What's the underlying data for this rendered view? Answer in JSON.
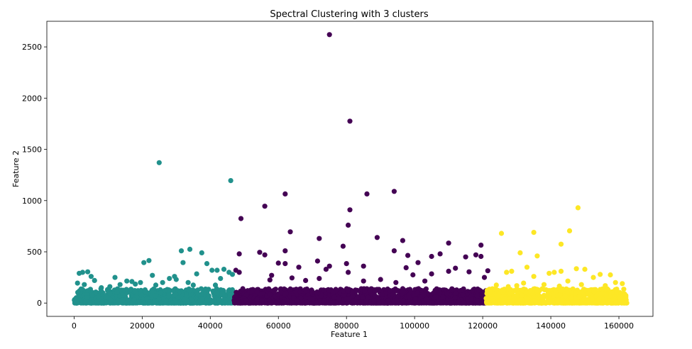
{
  "chart_data": {
    "type": "scatter",
    "title": "Spectral Clustering with 3 clusters",
    "xlabel": "Feature 1",
    "ylabel": "Feature 2",
    "xlim": [
      -8000,
      170000
    ],
    "ylim": [
      -130,
      2750
    ],
    "xticks": [
      0,
      20000,
      40000,
      60000,
      80000,
      100000,
      120000,
      140000,
      160000
    ],
    "xtick_labels": [
      "0",
      "20000",
      "40000",
      "60000",
      "80000",
      "100000",
      "120000",
      "140000",
      "160000"
    ],
    "yticks": [
      0,
      500,
      1000,
      1500,
      2000,
      2500
    ],
    "ytick_labels": [
      "0",
      "500",
      "1000",
      "1500",
      "2000",
      "2500"
    ],
    "grid": false,
    "legend": "none",
    "series": [
      {
        "color": "#21918c",
        "dense_band": {
          "x_range": [
            0,
            47000
          ],
          "y_range": [
            0,
            140
          ],
          "count": 950
        },
        "points": [
          [
            25000,
            1370
          ],
          [
            46000,
            1195
          ],
          [
            34000,
            525
          ],
          [
            31500,
            510
          ],
          [
            37500,
            490
          ],
          [
            22000,
            415
          ],
          [
            20500,
            395
          ],
          [
            32000,
            395
          ],
          [
            39000,
            385
          ],
          [
            4000,
            305
          ],
          [
            2500,
            300
          ],
          [
            1500,
            290
          ],
          [
            36000,
            285
          ],
          [
            5000,
            260
          ],
          [
            44000,
            330
          ],
          [
            45500,
            300
          ],
          [
            29500,
            260
          ],
          [
            28000,
            240
          ],
          [
            46500,
            280
          ],
          [
            15500,
            215
          ],
          [
            17000,
            210
          ],
          [
            19500,
            200
          ],
          [
            12000,
            250
          ],
          [
            23000,
            270
          ],
          [
            40500,
            320
          ],
          [
            42000,
            320
          ],
          [
            6000,
            220
          ],
          [
            3000,
            180
          ],
          [
            26000,
            200
          ],
          [
            43000,
            240
          ],
          [
            10500,
            160
          ],
          [
            33500,
            200
          ],
          [
            41500,
            175
          ],
          [
            24000,
            175
          ],
          [
            8000,
            150
          ],
          [
            1000,
            195
          ],
          [
            13500,
            180
          ],
          [
            18000,
            185
          ],
          [
            30000,
            230
          ],
          [
            35000,
            175
          ]
        ]
      },
      {
        "color": "#440154",
        "dense_band": {
          "x_range": [
            47000,
            121000
          ],
          "y_range": [
            0,
            140
          ],
          "count": 1500
        },
        "points": [
          [
            75000,
            2620
          ],
          [
            81000,
            1775
          ],
          [
            94000,
            1090
          ],
          [
            62000,
            1065
          ],
          [
            86000,
            1065
          ],
          [
            56000,
            945
          ],
          [
            81000,
            910
          ],
          [
            49000,
            825
          ],
          [
            80500,
            760
          ],
          [
            63500,
            695
          ],
          [
            89000,
            640
          ],
          [
            72000,
            630
          ],
          [
            96500,
            610
          ],
          [
            110000,
            585
          ],
          [
            79000,
            555
          ],
          [
            119500,
            565
          ],
          [
            94000,
            510
          ],
          [
            62000,
            510
          ],
          [
            54500,
            495
          ],
          [
            56000,
            470
          ],
          [
            48500,
            480
          ],
          [
            98000,
            465
          ],
          [
            107500,
            480
          ],
          [
            105000,
            455
          ],
          [
            115000,
            450
          ],
          [
            119500,
            455
          ],
          [
            118000,
            470
          ],
          [
            71500,
            410
          ],
          [
            101000,
            395
          ],
          [
            60000,
            390
          ],
          [
            62000,
            385
          ],
          [
            80000,
            385
          ],
          [
            75000,
            360
          ],
          [
            85000,
            360
          ],
          [
            66000,
            350
          ],
          [
            97500,
            345
          ],
          [
            112000,
            340
          ],
          [
            47500,
            320
          ],
          [
            48500,
            300
          ],
          [
            74000,
            330
          ],
          [
            121500,
            315
          ],
          [
            116000,
            305
          ],
          [
            110000,
            310
          ],
          [
            80500,
            300
          ],
          [
            105000,
            285
          ],
          [
            58000,
            270
          ],
          [
            99500,
            275
          ],
          [
            120500,
            250
          ],
          [
            64000,
            245
          ],
          [
            72000,
            240
          ],
          [
            90000,
            230
          ],
          [
            94500,
            200
          ],
          [
            68000,
            220
          ],
          [
            57500,
            225
          ],
          [
            85000,
            215
          ],
          [
            103000,
            215
          ]
        ]
      },
      {
        "color": "#fde725",
        "dense_band": {
          "x_range": [
            121000,
            162500
          ],
          "y_range": [
            0,
            140
          ],
          "count": 850
        },
        "points": [
          [
            148000,
            930
          ],
          [
            145500,
            705
          ],
          [
            135000,
            690
          ],
          [
            125500,
            680
          ],
          [
            143000,
            575
          ],
          [
            131000,
            490
          ],
          [
            136000,
            460
          ],
          [
            133000,
            350
          ],
          [
            147500,
            335
          ],
          [
            150000,
            330
          ],
          [
            128500,
            310
          ],
          [
            143000,
            310
          ],
          [
            141000,
            300
          ],
          [
            139500,
            290
          ],
          [
            154500,
            280
          ],
          [
            157500,
            275
          ],
          [
            152500,
            250
          ],
          [
            127000,
            300
          ],
          [
            135000,
            260
          ],
          [
            159000,
            200
          ],
          [
            132000,
            195
          ],
          [
            145000,
            215
          ],
          [
            149000,
            180
          ],
          [
            161000,
            190
          ],
          [
            124000,
            175
          ],
          [
            138000,
            180
          ],
          [
            156000,
            170
          ],
          [
            130000,
            170
          ],
          [
            142500,
            165
          ],
          [
            127500,
            160
          ]
        ]
      }
    ]
  }
}
